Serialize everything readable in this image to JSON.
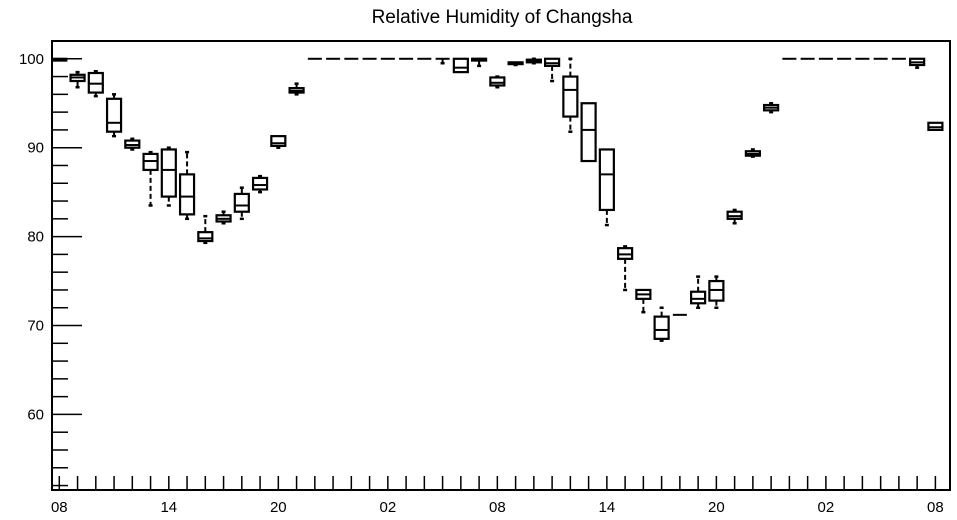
{
  "chart_data": {
    "type": "box",
    "title": "Relative Humidity of Changsha",
    "xlabel": "",
    "ylabel": "",
    "ylim": [
      51.5,
      102
    ],
    "y_ticks": [
      60,
      70,
      80,
      90,
      100
    ],
    "x_tick_labels": [
      "08",
      "14",
      "20",
      "02",
      "08",
      "14",
      "20",
      "02",
      "08"
    ],
    "x_tick_hours": [
      0,
      6,
      12,
      18,
      24,
      30,
      36,
      42,
      48
    ],
    "xlim": [
      -0.4,
      48.8
    ],
    "grid": false,
    "boxes": [
      {
        "x": 0,
        "min": 99.8,
        "q1": 99.8,
        "median": 99.9,
        "q3": 100.0,
        "max": 100.0
      },
      {
        "x": 1,
        "min": 96.8,
        "q1": 97.5,
        "median": 97.9,
        "q3": 98.2,
        "max": 98.5
      },
      {
        "x": 2,
        "min": 95.8,
        "q1": 96.2,
        "median": 97.2,
        "q3": 98.4,
        "max": 98.6
      },
      {
        "x": 3,
        "min": 91.3,
        "q1": 91.8,
        "median": 92.8,
        "q3": 95.5,
        "max": 96.0
      },
      {
        "x": 4,
        "min": 89.8,
        "q1": 90.0,
        "median": 90.3,
        "q3": 90.8,
        "max": 91.0
      },
      {
        "x": 5,
        "min": 83.5,
        "q1": 87.5,
        "median": 88.5,
        "q3": 89.3,
        "max": 89.5
      },
      {
        "x": 6,
        "min": 83.5,
        "q1": 84.5,
        "median": 87.5,
        "q3": 89.8,
        "max": 90.0
      },
      {
        "x": 7,
        "min": 82.0,
        "q1": 82.5,
        "median": 84.5,
        "q3": 87.0,
        "max": 89.5
      },
      {
        "x": 8,
        "min": 79.3,
        "q1": 79.5,
        "median": 79.8,
        "q3": 80.5,
        "max": 82.3
      },
      {
        "x": 9,
        "min": 81.5,
        "q1": 81.7,
        "median": 82.0,
        "q3": 82.4,
        "max": 82.8
      },
      {
        "x": 10,
        "min": 82.0,
        "q1": 82.8,
        "median": 83.5,
        "q3": 84.8,
        "max": 85.5
      },
      {
        "x": 11,
        "min": 85.0,
        "q1": 85.3,
        "median": 85.8,
        "q3": 86.6,
        "max": 86.8
      },
      {
        "x": 12,
        "min": 90.0,
        "q1": 90.2,
        "median": 90.5,
        "q3": 91.3,
        "max": 91.3
      },
      {
        "x": 13,
        "min": 96.0,
        "q1": 96.2,
        "median": 96.4,
        "q3": 96.7,
        "max": 97.2
      },
      {
        "x": 14,
        "min": 100.0,
        "q1": 100.0,
        "median": 100.0,
        "q3": 100.0,
        "max": 100.0
      },
      {
        "x": 15,
        "min": 100.0,
        "q1": 100.0,
        "median": 100.0,
        "q3": 100.0,
        "max": 100.0
      },
      {
        "x": 16,
        "min": 100.0,
        "q1": 100.0,
        "median": 100.0,
        "q3": 100.0,
        "max": 100.0
      },
      {
        "x": 17,
        "min": 100.0,
        "q1": 100.0,
        "median": 100.0,
        "q3": 100.0,
        "max": 100.0
      },
      {
        "x": 18,
        "min": 100.0,
        "q1": 100.0,
        "median": 100.0,
        "q3": 100.0,
        "max": 100.0
      },
      {
        "x": 19,
        "min": 100.0,
        "q1": 100.0,
        "median": 100.0,
        "q3": 100.0,
        "max": 100.0
      },
      {
        "x": 20,
        "min": 100.0,
        "q1": 100.0,
        "median": 100.0,
        "q3": 100.0,
        "max": 100.0
      },
      {
        "x": 21,
        "min": 99.5,
        "q1": 100.0,
        "median": 100.0,
        "q3": 100.0,
        "max": 100.0
      },
      {
        "x": 22,
        "min": 98.5,
        "q1": 98.5,
        "median": 99.0,
        "q3": 100.0,
        "max": 100.0
      },
      {
        "x": 23,
        "min": 99.2,
        "q1": 99.8,
        "median": 100.0,
        "q3": 100.0,
        "max": 100.0
      },
      {
        "x": 24,
        "min": 96.8,
        "q1": 97.0,
        "median": 97.3,
        "q3": 97.9,
        "max": 98.0
      },
      {
        "x": 25,
        "min": 99.3,
        "q1": 99.4,
        "median": 99.5,
        "q3": 99.6,
        "max": 99.6
      },
      {
        "x": 26,
        "min": 99.5,
        "q1": 99.6,
        "median": 99.8,
        "q3": 99.9,
        "max": 100.0
      },
      {
        "x": 27,
        "min": 97.5,
        "q1": 99.2,
        "median": 99.5,
        "q3": 100.0,
        "max": 100.0
      },
      {
        "x": 28,
        "min": 91.8,
        "q1": 93.5,
        "median": 96.5,
        "q3": 98.0,
        "max": 100.0
      },
      {
        "x": 29,
        "min": 88.5,
        "q1": 88.5,
        "median": 92.0,
        "q3": 95.0,
        "max": 95.0
      },
      {
        "x": 30,
        "min": 81.3,
        "q1": 83.0,
        "median": 87.0,
        "q3": 89.8,
        "max": 89.8
      },
      {
        "x": 31,
        "min": 74.0,
        "q1": 77.5,
        "median": 78.0,
        "q3": 78.7,
        "max": 78.9
      },
      {
        "x": 32,
        "min": 71.5,
        "q1": 73.0,
        "median": 73.5,
        "q3": 74.0,
        "max": 74.0
      },
      {
        "x": 33,
        "min": 68.3,
        "q1": 68.5,
        "median": 69.5,
        "q3": 71.0,
        "max": 72.0
      },
      {
        "x": 34,
        "min": 71.2,
        "q1": 71.2,
        "median": 71.2,
        "q3": 71.2,
        "max": 71.2
      },
      {
        "x": 35,
        "min": 72.0,
        "q1": 72.5,
        "median": 73.0,
        "q3": 73.8,
        "max": 75.5
      },
      {
        "x": 36,
        "min": 72.0,
        "q1": 72.8,
        "median": 74.0,
        "q3": 75.0,
        "max": 75.5
      },
      {
        "x": 37,
        "min": 81.5,
        "q1": 82.0,
        "median": 82.3,
        "q3": 82.8,
        "max": 83.0
      },
      {
        "x": 38,
        "min": 89.0,
        "q1": 89.1,
        "median": 89.3,
        "q3": 89.6,
        "max": 89.8
      },
      {
        "x": 39,
        "min": 94.0,
        "q1": 94.2,
        "median": 94.5,
        "q3": 94.8,
        "max": 95.0
      },
      {
        "x": 40,
        "min": 100.0,
        "q1": 100.0,
        "median": 100.0,
        "q3": 100.0,
        "max": 100.0
      },
      {
        "x": 41,
        "min": 100.0,
        "q1": 100.0,
        "median": 100.0,
        "q3": 100.0,
        "max": 100.0
      },
      {
        "x": 42,
        "min": 100.0,
        "q1": 100.0,
        "median": 100.0,
        "q3": 100.0,
        "max": 100.0
      },
      {
        "x": 43,
        "min": 100.0,
        "q1": 100.0,
        "median": 100.0,
        "q3": 100.0,
        "max": 100.0
      },
      {
        "x": 44,
        "min": 100.0,
        "q1": 100.0,
        "median": 100.0,
        "q3": 100.0,
        "max": 100.0
      },
      {
        "x": 45,
        "min": 100.0,
        "q1": 100.0,
        "median": 100.0,
        "q3": 100.0,
        "max": 100.0
      },
      {
        "x": 46,
        "min": 100.0,
        "q1": 100.0,
        "median": 100.0,
        "q3": 100.0,
        "max": 100.0
      },
      {
        "x": 47,
        "min": 99.0,
        "q1": 99.3,
        "median": 99.6,
        "q3": 100.0,
        "max": 100.0
      },
      {
        "x": 48,
        "min": 92.0,
        "q1": 92.0,
        "median": 92.3,
        "q3": 92.8,
        "max": 92.8
      }
    ]
  }
}
